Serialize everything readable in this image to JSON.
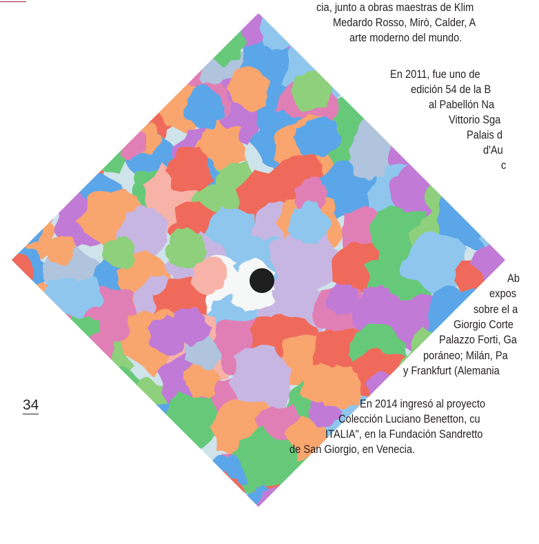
{
  "page": {
    "number": "34",
    "accent_color": "#9a1b2f",
    "text_color": "#231f20"
  },
  "artwork": {
    "shape": "diamond",
    "background": "#cfe3ea",
    "dot_color": "#1f1f1f",
    "palette": [
      "#e07fb6",
      "#f9a56e",
      "#8ed07b",
      "#8fc6ee",
      "#5ba6e8",
      "#c17bd6",
      "#f06a5b",
      "#f6f7f7",
      "#f7b3a8",
      "#b0c4de",
      "#c8b6e2",
      "#66c97a"
    ]
  },
  "body_text": {
    "lines": [
      "cia, junto a obras maestras de Klim",
      "Medardo Rosso, Mirò, Calder, A",
      "arte moderno del mundo.",
      "En 2011, fue uno de",
      "edición 54 de la B",
      "al Pabellón Na",
      "Vittorio Sga",
      "Palais d",
      "d'Au",
      "c",
      "Ab",
      "expos",
      "sobre el a",
      "Giorgio Corte",
      "Palazzo Forti, Ga",
      "poráneo; Milán, Pa",
      "y Frankfurt (Alemania",
      "En 2014 ingresó al proyecto",
      "Colección Luciano Benetton, cu",
      "ITALIA\", en la Fundación Sandretto",
      "de San Giorgio, en Venecia."
    ]
  }
}
